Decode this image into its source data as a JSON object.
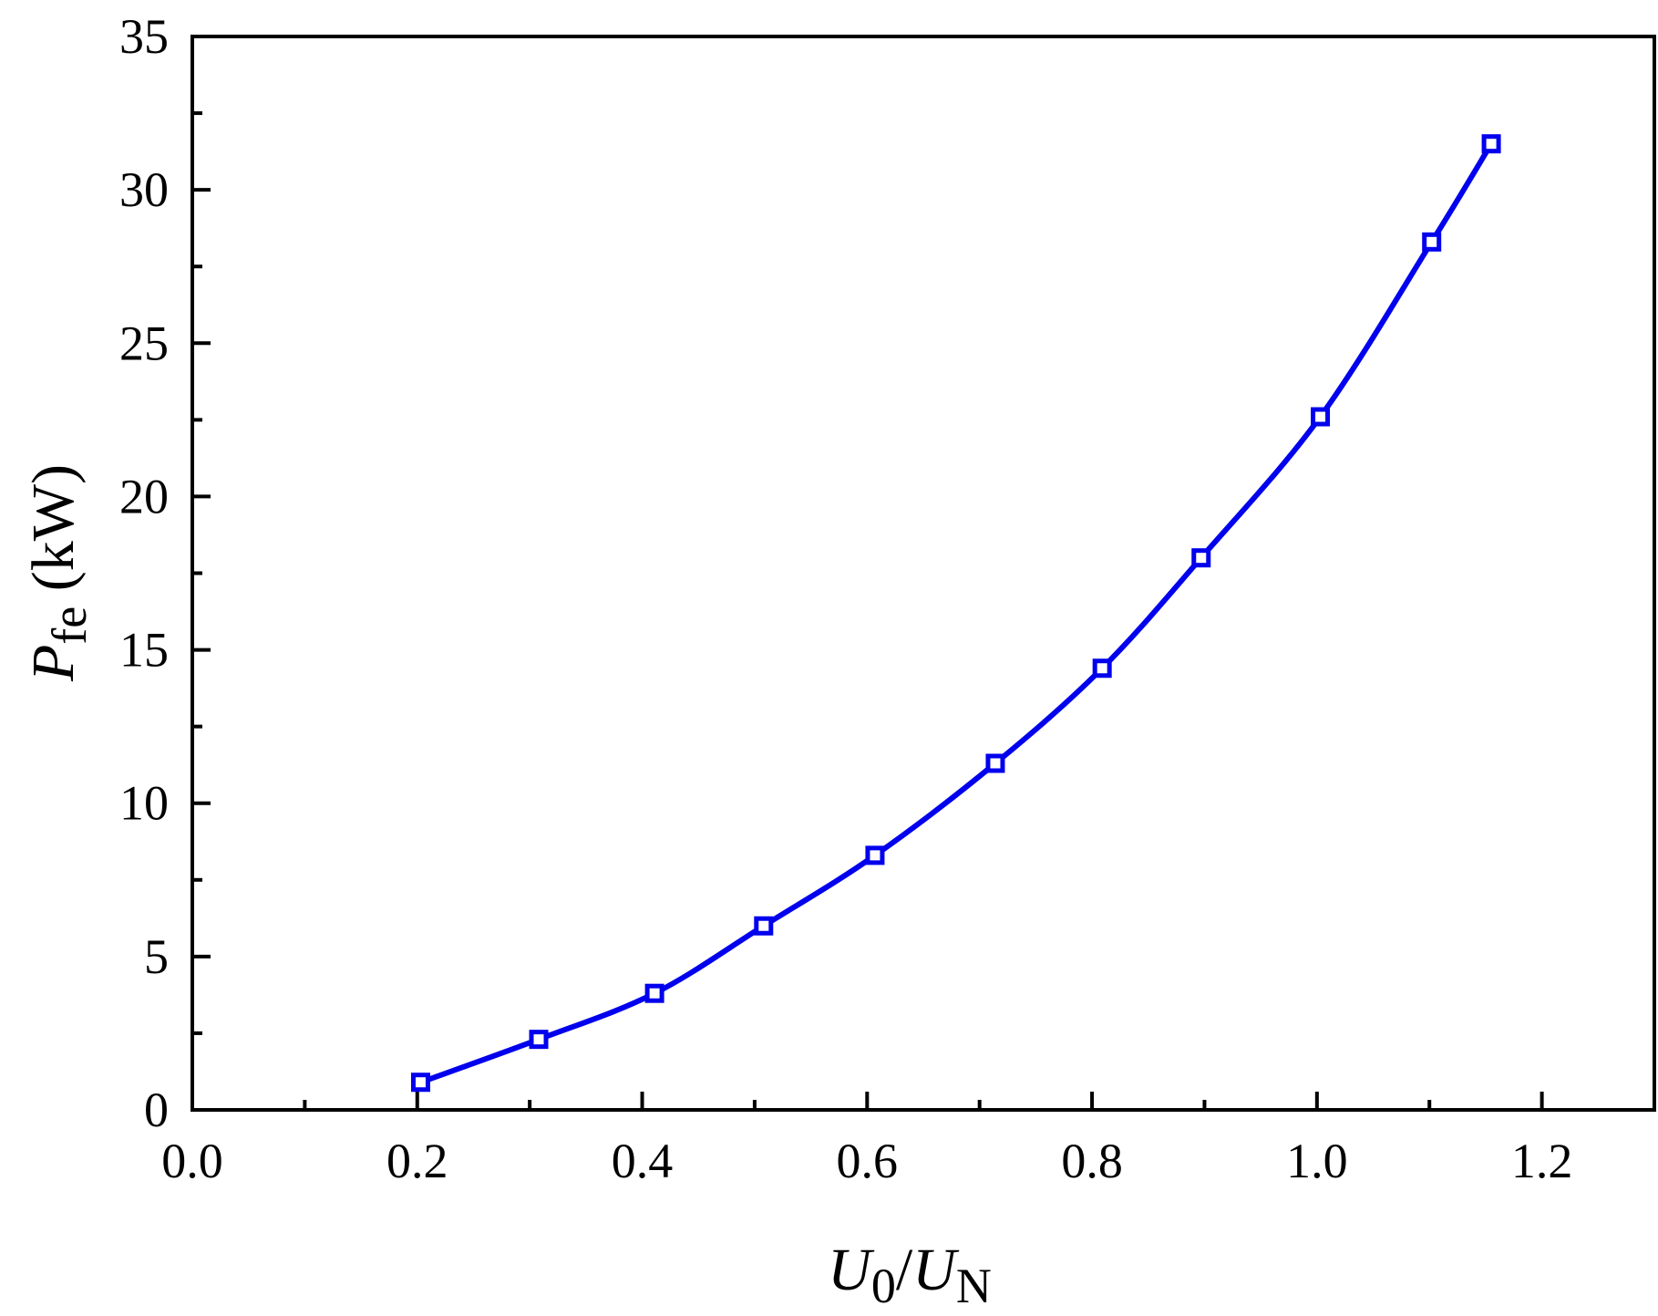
{
  "chart_data": {
    "type": "line",
    "xlabel": {
      "main": "U",
      "sub": "0",
      "sep": "/",
      "main2": "U",
      "sub2": "N"
    },
    "ylabel": {
      "main": "P",
      "sub": "fe",
      "unit": " (kW)"
    },
    "xlim": [
      0.0,
      1.3
    ],
    "ylim": [
      0,
      35
    ],
    "x_ticks": [
      "0.0",
      "0.2",
      "0.4",
      "0.6",
      "0.8",
      "1.0",
      "1.2"
    ],
    "y_ticks": [
      "0",
      "5",
      "10",
      "15",
      "20",
      "25",
      "30",
      "35"
    ],
    "grid": false,
    "legend": "none",
    "series": [
      {
        "marker": "open-square",
        "color": "#0000ee",
        "x": [
          0.203,
          0.308,
          0.411,
          0.508,
          0.607,
          0.714,
          0.809,
          0.897,
          1.003,
          1.102,
          1.155
        ],
        "y": [
          0.9,
          2.3,
          3.8,
          6.0,
          8.3,
          11.3,
          14.4,
          18.0,
          22.6,
          28.3,
          31.5
        ]
      }
    ]
  }
}
